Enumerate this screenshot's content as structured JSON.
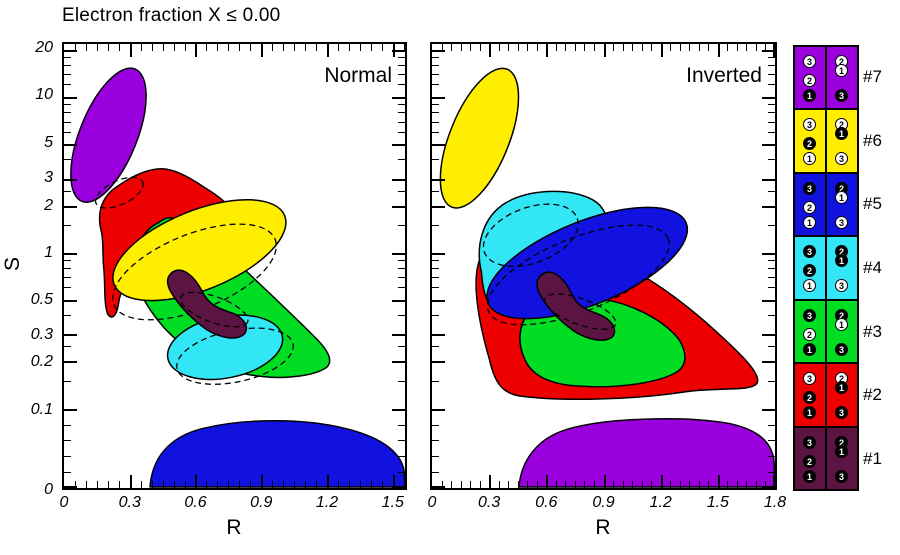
{
  "title": "Electron fraction X ≤ 0.00",
  "colors": {
    "purple": "#9900DD",
    "yellow": "#FFEE00",
    "blue": "#1212E0",
    "cyan": "#33E6F6",
    "green": "#00DD22",
    "red": "#EE0000",
    "maroon": "#5C1442",
    "axis": "#000000"
  },
  "y_axis": {
    "label": "S",
    "major": [
      {
        "label": "20",
        "f": 0.987
      },
      {
        "label": "10",
        "f": 0.881
      },
      {
        "label": "5",
        "f": 0.775
      },
      {
        "label": "3",
        "f": 0.697
      },
      {
        "label": "2",
        "f": 0.635
      },
      {
        "label": "1",
        "f": 0.53
      },
      {
        "label": "0.5",
        "f": 0.424
      },
      {
        "label": "0.3",
        "f": 0.346
      },
      {
        "label": "0.2",
        "f": 0.285
      },
      {
        "label": "0.1",
        "f": 0.179
      },
      {
        "label": "0",
        "f": 0.0
      }
    ],
    "minor_f": [
      0.036,
      0.072,
      0.107,
      0.143,
      0.241,
      0.319,
      0.39,
      0.452,
      0.475,
      0.496,
      0.514,
      0.592,
      0.67,
      0.74,
      0.802,
      0.825,
      0.846,
      0.864,
      0.909,
      0.932,
      0.953,
      0.971
    ]
  },
  "panels": [
    {
      "id": "normal",
      "label": "Normal",
      "xlabel": "R",
      "x_max": 1.556,
      "x_minor_step": 0.05,
      "x_major_step": 0.3,
      "x_ticks": [
        {
          "label": "0",
          "v": 0
        },
        {
          "label": "0.3",
          "v": 0.3
        },
        {
          "label": "0.6",
          "v": 0.6
        },
        {
          "label": "0.9",
          "v": 0.9
        },
        {
          "label": "1.2",
          "v": 1.2
        },
        {
          "label": "1.5",
          "v": 1.5
        }
      ]
    },
    {
      "id": "inverted",
      "label": "Inverted",
      "xlabel": "R",
      "x_max": 1.8,
      "x_minor_step": 0.05,
      "x_major_step": 0.3,
      "x_ticks": [
        {
          "label": "0",
          "v": 0
        },
        {
          "label": "0.3",
          "v": 0.3
        },
        {
          "label": "0.6",
          "v": 0.6
        },
        {
          "label": "0.9",
          "v": 0.9
        },
        {
          "label": "1.2",
          "v": 1.2
        },
        {
          "label": "1.5",
          "v": 1.5
        },
        {
          "label": "1.8",
          "v": 1.8
        }
      ]
    }
  ],
  "legend": {
    "rows": [
      {
        "label": "#7",
        "color": "purple",
        "left": [
          {
            "n": "3",
            "filled": false
          },
          {
            "n": "2",
            "filled": false
          },
          {
            "n": "1",
            "filled": true
          }
        ],
        "right": [
          {
            "n": "2",
            "filled": false
          },
          {
            "n": "1",
            "filled": false
          },
          {
            "n": "3",
            "filled": true
          }
        ]
      },
      {
        "label": "#6",
        "color": "yellow",
        "left": [
          {
            "n": "3",
            "filled": false
          },
          {
            "n": "2",
            "filled": true
          },
          {
            "n": "1",
            "filled": false
          }
        ],
        "right": [
          {
            "n": "2",
            "filled": false
          },
          {
            "n": "1",
            "filled": true
          },
          {
            "n": "3",
            "filled": false
          }
        ]
      },
      {
        "label": "#5",
        "color": "blue",
        "left": [
          {
            "n": "3",
            "filled": true
          },
          {
            "n": "2",
            "filled": false
          },
          {
            "n": "1",
            "filled": false
          }
        ],
        "right": [
          {
            "n": "2",
            "filled": true
          },
          {
            "n": "1",
            "filled": false
          },
          {
            "n": "3",
            "filled": false
          }
        ]
      },
      {
        "label": "#4",
        "color": "cyan",
        "left": [
          {
            "n": "3",
            "filled": true
          },
          {
            "n": "2",
            "filled": true
          },
          {
            "n": "1",
            "filled": false
          }
        ],
        "right": [
          {
            "n": "2",
            "filled": true
          },
          {
            "n": "1",
            "filled": true
          },
          {
            "n": "3",
            "filled": false
          }
        ]
      },
      {
        "label": "#3",
        "color": "green",
        "left": [
          {
            "n": "3",
            "filled": true
          },
          {
            "n": "2",
            "filled": false
          },
          {
            "n": "1",
            "filled": true
          }
        ],
        "right": [
          {
            "n": "2",
            "filled": true
          },
          {
            "n": "1",
            "filled": false
          },
          {
            "n": "3",
            "filled": true
          }
        ]
      },
      {
        "label": "#2",
        "color": "red",
        "left": [
          {
            "n": "3",
            "filled": false
          },
          {
            "n": "2",
            "filled": true
          },
          {
            "n": "1",
            "filled": true
          }
        ],
        "right": [
          {
            "n": "2",
            "filled": false
          },
          {
            "n": "1",
            "filled": true
          },
          {
            "n": "3",
            "filled": true
          }
        ]
      },
      {
        "label": "#1",
        "color": "maroon",
        "left": [
          {
            "n": "3",
            "filled": true
          },
          {
            "n": "2",
            "filled": true
          },
          {
            "n": "1",
            "filled": true
          }
        ],
        "right": [
          {
            "n": "2",
            "filled": true
          },
          {
            "n": "1",
            "filled": true
          },
          {
            "n": "3",
            "filled": true
          }
        ]
      }
    ]
  },
  "chart_data": {
    "type": "contour-regions",
    "title": "Electron fraction X ≤ 0.00",
    "xlabel": "R",
    "ylabel": "S",
    "y_scale": "log from 0.1 to 20 with linear segment down to 0",
    "y_ticks": [
      0,
      0.1,
      0.2,
      0.3,
      0.5,
      1,
      2,
      3,
      5,
      10,
      20
    ],
    "x_ticks_normal": [
      0,
      0.3,
      0.6,
      0.9,
      1.2,
      1.5
    ],
    "x_ticks_inverted": [
      0,
      0.3,
      0.6,
      0.9,
      1.2,
      1.5,
      1.8
    ],
    "panels": [
      {
        "label": "Normal",
        "x_range": [
          0,
          1.56
        ],
        "regions": [
          {
            "id": "#7",
            "color": "purple",
            "R": [
              0.03,
              0.38
            ],
            "S": [
              2.2,
              15
            ]
          },
          {
            "id": "#2",
            "color": "red",
            "R": [
              0.15,
              0.79
            ],
            "S": [
              0.45,
              3.6
            ]
          },
          {
            "id": "#6",
            "color": "yellow",
            "R": [
              0.2,
              1.04
            ],
            "S": [
              0.56,
              2.25
            ]
          },
          {
            "id": "#3",
            "color": "green",
            "R": [
              0.35,
              1.21
            ],
            "S": [
              0.2,
              2.0
            ]
          },
          {
            "id": "#4",
            "color": "cyan",
            "R": [
              0.47,
              1.0
            ],
            "S": [
              0.24,
              0.75
            ]
          },
          {
            "id": "#1",
            "color": "maroon",
            "R": [
              0.44,
              0.86
            ],
            "S": [
              0.35,
              1.0
            ]
          },
          {
            "id": "#5",
            "color": "blue",
            "R": [
              0.39,
              1.56
            ],
            "S": [
              0,
              0.095
            ]
          }
        ]
      },
      {
        "label": "Inverted",
        "x_range": [
          0,
          1.8
        ],
        "regions": [
          {
            "id": "#6",
            "color": "yellow",
            "R": [
              0.03,
              0.48
            ],
            "S": [
              2.2,
              15
            ]
          },
          {
            "id": "#4",
            "color": "cyan",
            "R": [
              0.22,
              0.91
            ],
            "S": [
              0.5,
              2.6
            ]
          },
          {
            "id": "#5",
            "color": "blue",
            "R": [
              0.27,
              1.36
            ],
            "S": [
              0.5,
              2.2
            ]
          },
          {
            "id": "#2",
            "color": "red",
            "R": [
              0.2,
              1.71
            ],
            "S": [
              0.12,
              1.3
            ]
          },
          {
            "id": "#3",
            "color": "green",
            "R": [
              0.44,
              1.32
            ],
            "S": [
              0.17,
              0.62
            ]
          },
          {
            "id": "#1",
            "color": "maroon",
            "R": [
              0.54,
              0.97
            ],
            "S": [
              0.35,
              1.0
            ]
          },
          {
            "id": "#7",
            "color": "purple",
            "R": [
              0.47,
              1.8
            ],
            "S": [
              0,
              0.095
            ]
          }
        ]
      }
    ]
  }
}
